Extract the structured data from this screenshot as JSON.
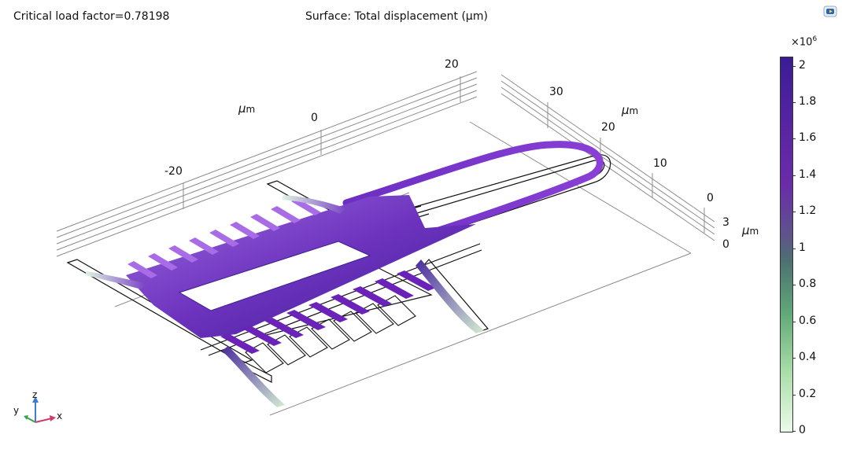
{
  "header": {
    "left_label": "Critical load factor=0.78198",
    "center_label": "Surface: Total displacement (µm)"
  },
  "axes": {
    "x_ticks": [
      "-20",
      "0",
      "20"
    ],
    "y_ticks": [
      "30",
      "20",
      "10",
      "0"
    ],
    "z_ticks": [
      "3",
      "0"
    ],
    "unit_mu": "µ",
    "unit_m": "m"
  },
  "colorbar": {
    "exponent_base": "×10",
    "exponent_power": "6",
    "ticks": [
      "2",
      "1.8",
      "1.6",
      "1.4",
      "1.2",
      "1",
      "0.8",
      "0.6",
      "0.4",
      "0.2",
      "0"
    ],
    "min": 0,
    "max": 2.05,
    "colors": [
      "#eafbe9",
      "#a9dea7",
      "#5fa777",
      "#4c6f72",
      "#6a2ca9",
      "#3a1c93"
    ]
  },
  "triad": {
    "x": "x",
    "y": "y",
    "z": "z"
  },
  "icons": {
    "corner": "comsol-view-icon"
  }
}
